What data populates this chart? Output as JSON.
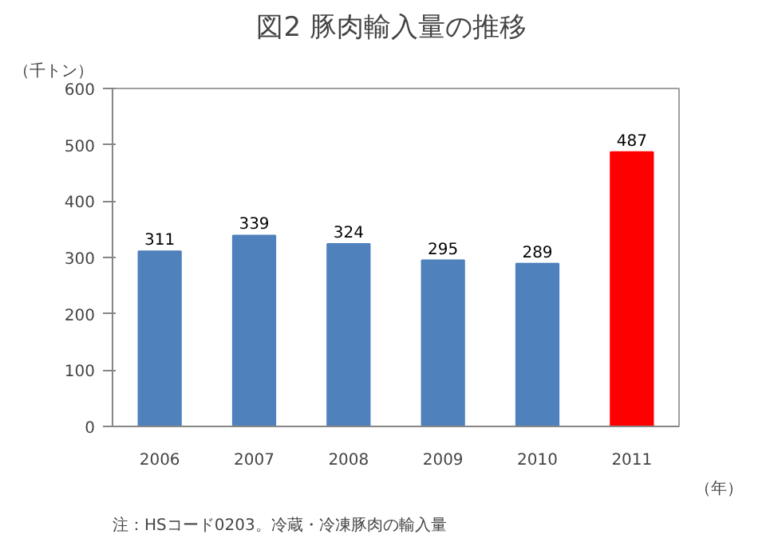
{
  "chart_data": {
    "type": "bar",
    "title": "図2  豚肉輸入量の推移",
    "ylabel": "（千トン）",
    "xlabel": "（年）",
    "categories": [
      "2006",
      "2007",
      "2008",
      "2009",
      "2010",
      "2011"
    ],
    "values": [
      311,
      339,
      324,
      295,
      289,
      487
    ],
    "colors": [
      "#4f81bd",
      "#4f81bd",
      "#4f81bd",
      "#4f81bd",
      "#4f81bd",
      "#ff0000"
    ],
    "ylim": [
      0,
      600
    ],
    "yticks": [
      0,
      100,
      200,
      300,
      400,
      500,
      600
    ],
    "grid": false,
    "data_labels": true,
    "annotations": [
      "注：HSコード0203。冷蔵・冷凍豚肉の輸入量"
    ]
  }
}
